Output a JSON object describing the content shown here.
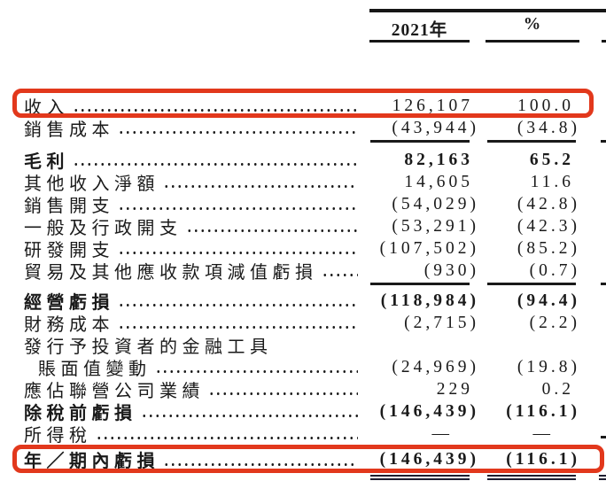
{
  "colors": {
    "highlight_box": "#e2381c",
    "ink": "#1a1a1a",
    "background": "#ffffff"
  },
  "header": {
    "columns": [
      {
        "label": "2021年"
      },
      {
        "label": "%"
      }
    ]
  },
  "table": {
    "rows": [
      {
        "label": "收入",
        "y2021": "126,107",
        "pct": "100.0"
      },
      {
        "label": "銷售成本",
        "y2021": "(43,944)",
        "pct": "(34.8)"
      },
      {
        "label": "毛利",
        "y2021": "82,163",
        "pct": "65.2"
      },
      {
        "label": "其他收入淨額",
        "y2021": "14,605",
        "pct": "11.6"
      },
      {
        "label": "銷售開支",
        "y2021": "(54,029)",
        "pct": "(42.8)"
      },
      {
        "label": "一般及行政開支",
        "y2021": "(53,291)",
        "pct": "(42.3)"
      },
      {
        "label": "研發開支",
        "y2021": "(107,502)",
        "pct": "(85.2)"
      },
      {
        "label": "貿易及其他應收款項減值虧損",
        "y2021": "(930)",
        "pct": "(0.7)"
      },
      {
        "label": "經營虧損",
        "y2021": "(118,984)",
        "pct": "(94.4)"
      },
      {
        "label": "財務成本",
        "y2021": "(2,715)",
        "pct": "(2.2)"
      },
      {
        "label": "發行予投資者的金融工具",
        "y2021": "",
        "pct": ""
      },
      {
        "label": "賬面值變動",
        "y2021": "(24,969)",
        "pct": "(19.8)"
      },
      {
        "label": "應佔聯營公司業績",
        "y2021": "229",
        "pct": "0.2"
      },
      {
        "label": "除稅前虧損",
        "y2021": "(146,439)",
        "pct": "(116.1)"
      },
      {
        "label": "所得稅",
        "y2021": "—",
        "pct": "—"
      },
      {
        "label": "年／期內虧損",
        "y2021": "(146,439)",
        "pct": "(116.1)"
      }
    ],
    "highlighted_rows": [
      "收入",
      "年／期內虧損"
    ]
  }
}
